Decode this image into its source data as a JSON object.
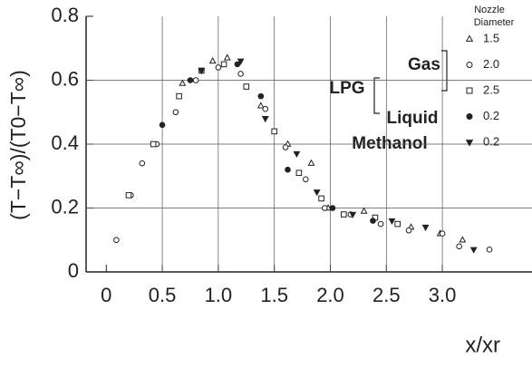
{
  "chart_data": {
    "type": "scatter",
    "x_label": "x/xr",
    "y_label": "(T−T∞)/(T0−T∞)",
    "xlim": [
      -0.18,
      3.8
    ],
    "ylim": [
      0,
      0.8
    ],
    "xticks": [
      0,
      0.5,
      {
        "value": 1,
        "label": "1.0"
      },
      1.5,
      {
        "value": 2,
        "label": "2.0"
      },
      2.5,
      {
        "value": 3,
        "label": "3.0"
      }
    ],
    "yticks": [
      0,
      0.2,
      0.4,
      0.6,
      0.8
    ],
    "grid": true,
    "legend_title": [
      "Nozzle",
      "Diameter"
    ],
    "legend_groups": {
      "fuel": "LPG",
      "gas": "Gas",
      "liquid": "Liquid",
      "methanol": "Methanol"
    },
    "series": [
      {
        "name": "1.5",
        "marker": "triangle-up",
        "filled": false,
        "color": "#222",
        "x": [
          0.68,
          0.95,
          1.08,
          1.38,
          1.62,
          1.83,
          1.98,
          2.3,
          2.72,
          2.98,
          3.18
        ],
        "values": [
          0.59,
          0.66,
          0.67,
          0.52,
          0.4,
          0.34,
          0.2,
          0.19,
          0.14,
          0.12,
          0.1
        ]
      },
      {
        "name": "2.0",
        "marker": "circle",
        "filled": false,
        "color": "#222",
        "x": [
          0.09,
          0.22,
          0.32,
          0.45,
          0.62,
          0.8,
          1.0,
          1.2,
          1.42,
          1.6,
          1.78,
          1.95,
          2.18,
          2.45,
          2.7,
          3.0,
          3.15,
          3.42
        ],
        "values": [
          0.1,
          0.24,
          0.34,
          0.4,
          0.5,
          0.6,
          0.64,
          0.62,
          0.51,
          0.39,
          0.29,
          0.2,
          0.18,
          0.15,
          0.13,
          0.12,
          0.08,
          0.07
        ]
      },
      {
        "name": "2.5",
        "marker": "square",
        "filled": false,
        "color": "#222",
        "x": [
          0.2,
          0.42,
          0.65,
          0.85,
          1.05,
          1.25,
          1.5,
          1.72,
          1.92,
          2.12,
          2.4,
          2.6
        ],
        "values": [
          0.24,
          0.4,
          0.55,
          0.63,
          0.65,
          0.58,
          0.44,
          0.31,
          0.23,
          0.18,
          0.17,
          0.15
        ]
      },
      {
        "name": "0.2",
        "marker": "circle",
        "filled": true,
        "color": "#222",
        "x": [
          0.5,
          0.75,
          1.17,
          1.38,
          1.62,
          2.02,
          2.38
        ],
        "values": [
          0.46,
          0.6,
          0.65,
          0.55,
          0.32,
          0.2,
          0.16
        ]
      },
      {
        "name": "0.2",
        "marker": "triangle-down",
        "filled": true,
        "color": "#222",
        "x": [
          0.85,
          1.2,
          1.42,
          1.7,
          1.88,
          2.2,
          2.55,
          2.85,
          3.28
        ],
        "values": [
          0.63,
          0.66,
          0.48,
          0.37,
          0.25,
          0.18,
          0.16,
          0.14,
          0.07
        ]
      }
    ]
  }
}
